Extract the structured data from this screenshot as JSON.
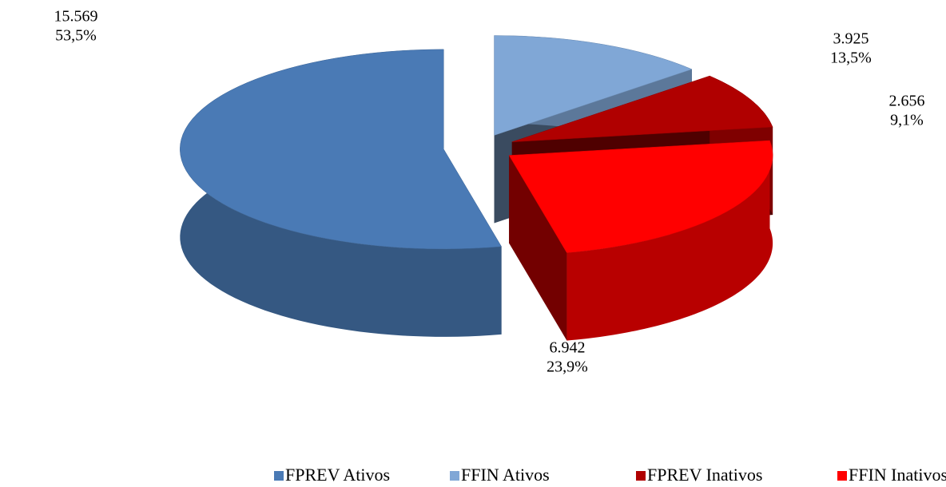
{
  "chart_data": {
    "type": "pie3d",
    "categories": [
      "FPREV Ativos",
      "FFIN Ativos",
      "FPREV Inativos",
      "FFIN Inativos"
    ],
    "values": [
      15569,
      3925,
      2656,
      6942
    ],
    "value_labels": [
      "15.569",
      "3.925",
      "2.656",
      "6.942"
    ],
    "percent_labels": [
      "53,5%",
      "13,5%",
      "9,1%",
      "23,9%"
    ],
    "colors": [
      "#4a7ab5",
      "#80a7d6",
      "#b00000",
      "#ff0000"
    ],
    "legend": "bottom"
  }
}
